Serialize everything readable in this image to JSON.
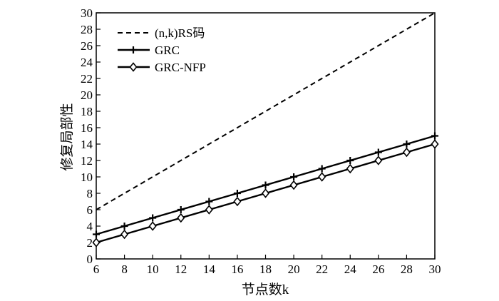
{
  "chart_data": {
    "type": "line",
    "title": "",
    "xlabel": "节点数k",
    "ylabel": "修复局部性",
    "xlim": [
      6,
      30
    ],
    "ylim": [
      0,
      30
    ],
    "x_ticks": [
      6,
      8,
      10,
      12,
      14,
      16,
      18,
      20,
      22,
      24,
      26,
      28,
      30
    ],
    "y_ticks": [
      0,
      2,
      4,
      6,
      8,
      10,
      12,
      14,
      16,
      18,
      20,
      22,
      24,
      26,
      28,
      30
    ],
    "grid": false,
    "legend_position": "top-left",
    "x": [
      6,
      8,
      10,
      12,
      14,
      16,
      18,
      20,
      22,
      24,
      26,
      28,
      30
    ],
    "series": [
      {
        "name": "(n,k)RS码",
        "style": "dashed",
        "marker": "none",
        "color": "#000000",
        "x": [
          6,
          30
        ],
        "values": [
          6,
          30
        ]
      },
      {
        "name": "GRC",
        "style": "solid",
        "marker": "plus",
        "color": "#000000",
        "x": [
          6,
          8,
          10,
          12,
          14,
          16,
          18,
          20,
          22,
          24,
          26,
          28,
          30
        ],
        "values": [
          3,
          4,
          5,
          6,
          7,
          8,
          9,
          10,
          11,
          12,
          13,
          14,
          15
        ]
      },
      {
        "name": "GRC-NFP",
        "style": "solid",
        "marker": "diamond",
        "color": "#000000",
        "x": [
          6,
          8,
          10,
          12,
          14,
          16,
          18,
          20,
          22,
          24,
          26,
          28,
          30
        ],
        "values": [
          2,
          3,
          4,
          5,
          6,
          7,
          8,
          9,
          10,
          11,
          12,
          13,
          14
        ]
      }
    ]
  }
}
